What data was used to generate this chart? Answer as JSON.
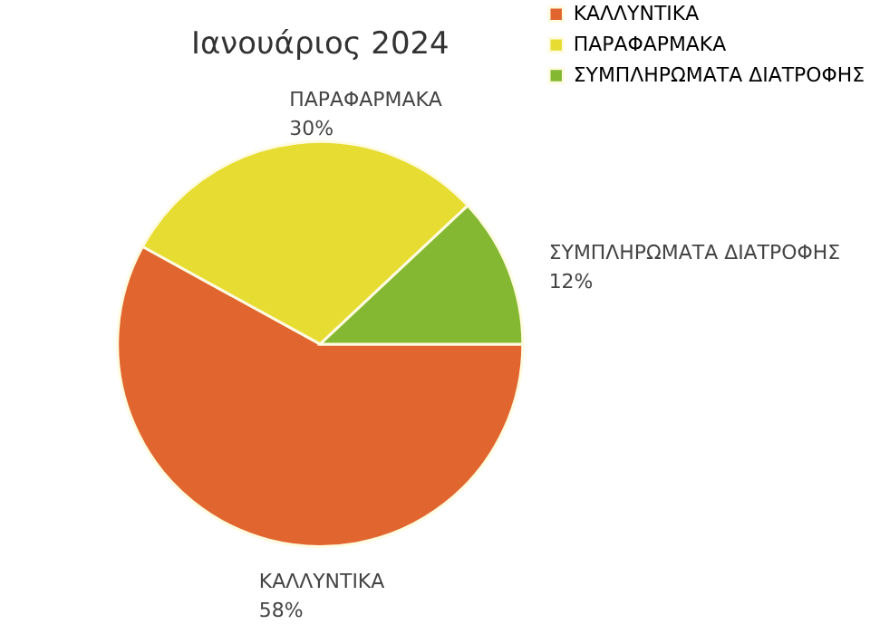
{
  "chart_data": {
    "type": "pie",
    "title": "Ιανουάριος 2024",
    "categories": [
      "ΚΑΛΛΥΝΤΙΚΑ",
      "ΠΑΡΑΦΑΡΜΑΚΑ",
      "ΣΥΜΠΛΗΡΩΜΑΤΑ ΔΙΑΤΡΟΦΗΣ"
    ],
    "values": [
      58,
      30,
      12
    ],
    "value_labels": [
      "58%",
      "30%",
      "12%"
    ],
    "colors": [
      "#e0652e",
      "#e6dc32",
      "#84b832"
    ],
    "legend": "top right"
  }
}
